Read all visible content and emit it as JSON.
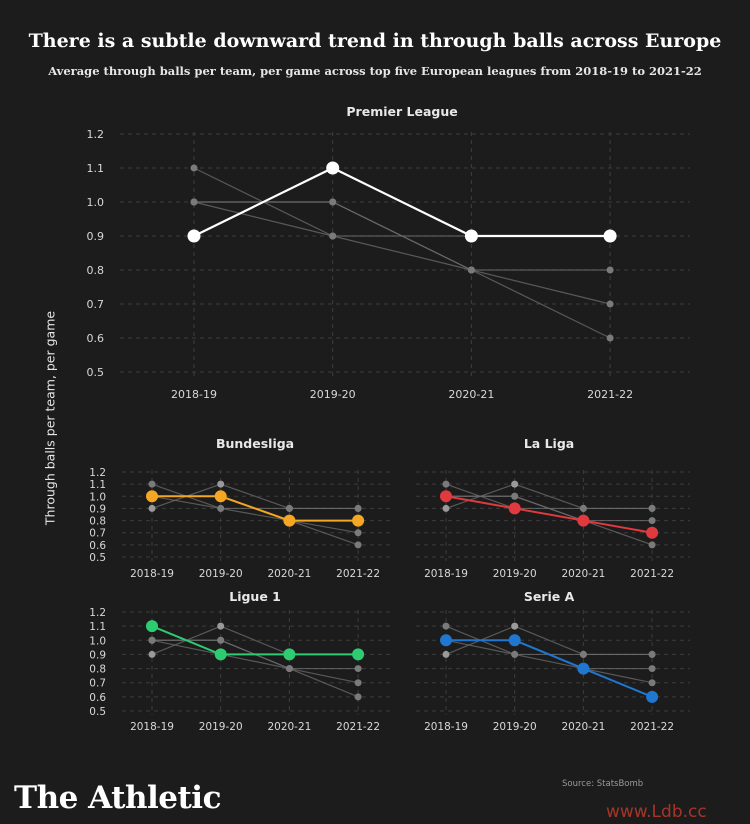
{
  "title": "There is a subtle downward trend in through balls across Europe",
  "subtitle": "Average through balls per team, per game across top five European leagues from 2018-19 to 2021-22",
  "ylabel": "Through balls per team, per game",
  "brand": "The Athletic",
  "source": "Source: StatsBomb",
  "watermark": "www.Ldb.cc",
  "chart_data": {
    "type": "line",
    "categories": [
      "2018-19",
      "2019-20",
      "2020-21",
      "2021-22"
    ],
    "yticks": [
      "0.5",
      "0.6",
      "0.7",
      "0.8",
      "0.9",
      "1.0",
      "1.1",
      "1.2"
    ],
    "ylim": [
      0.5,
      1.2
    ],
    "grid": true,
    "context_color": "#6e6e6e",
    "panels": [
      {
        "name": "Premier League",
        "color": "#ffffff",
        "values": [
          0.9,
          1.1,
          0.9,
          0.9
        ]
      },
      {
        "name": "Bundesliga",
        "color": "#f5a623",
        "values": [
          1.0,
          1.0,
          0.8,
          0.8
        ]
      },
      {
        "name": "La Liga",
        "color": "#e03a3e",
        "values": [
          1.0,
          0.9,
          0.8,
          0.7
        ]
      },
      {
        "name": "Ligue 1",
        "color": "#2ecc71",
        "values": [
          1.1,
          0.9,
          0.9,
          0.9
        ]
      },
      {
        "name": "Serie A",
        "color": "#1f77d0",
        "values": [
          1.0,
          1.0,
          0.8,
          0.6
        ]
      }
    ]
  }
}
